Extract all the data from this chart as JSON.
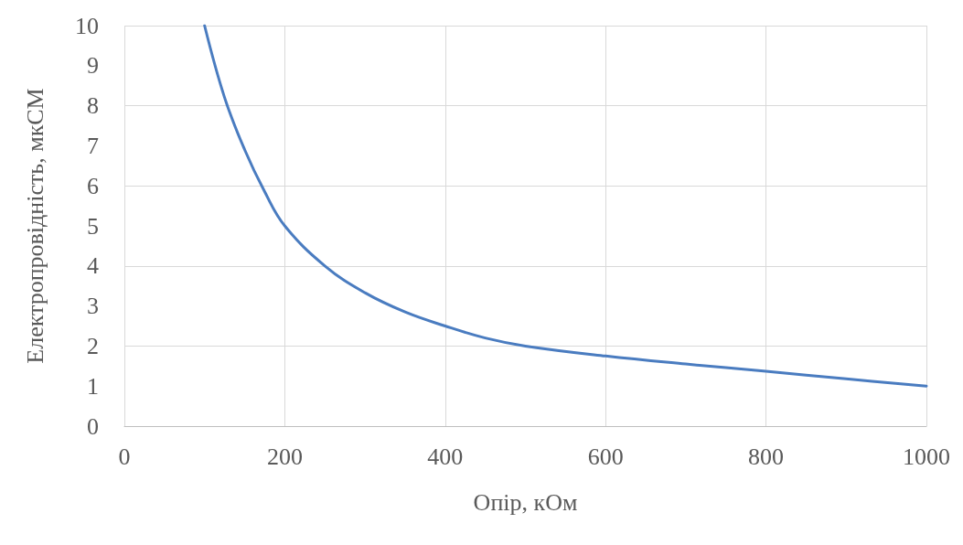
{
  "chart_data": {
    "type": "line",
    "xlabel": "Опір, кОм",
    "ylabel": "Електропровідність, мкСМ",
    "x": [
      100,
      125,
      150,
      175,
      200,
      250,
      300,
      350,
      400,
      450,
      500,
      600,
      700,
      800,
      900,
      1000
    ],
    "series": [
      {
        "color": "#4a7cc0",
        "values": [
          10,
          8.2,
          6.9,
          5.85,
          5,
          4.0,
          3.33,
          2.85,
          2.5,
          2.2,
          2.0,
          1.75,
          1.55,
          1.37,
          1.18,
          1.0
        ]
      }
    ],
    "xlim": [
      0,
      1000
    ],
    "xticks": [
      0,
      200,
      400,
      600,
      800,
      1000
    ],
    "ylim": [
      0,
      10
    ],
    "yticks": [
      0,
      1,
      2,
      3,
      4,
      5,
      6,
      7,
      8,
      9,
      10
    ],
    "grid": true,
    "marker": "none",
    "line_style": "solid"
  }
}
